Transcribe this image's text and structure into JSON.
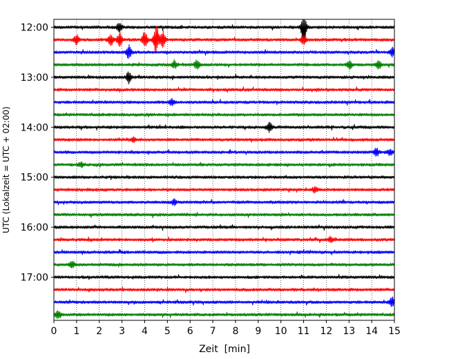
{
  "chart_data": {
    "type": "line",
    "xlabel": "Zeit  [min]",
    "ylabel": "UTC (Lokalzeit = UTC + 02:00)",
    "xlim": [
      0,
      15
    ],
    "x_ticks": [
      "0",
      "1",
      "2",
      "3",
      "4",
      "5",
      "6",
      "7",
      "8",
      "9",
      "10",
      "11",
      "12",
      "13",
      "14",
      "15"
    ],
    "y_tick_labels": [
      "12:00",
      "13:00",
      "14:00",
      "15:00",
      "16:00",
      "17:00"
    ],
    "grid": "vertical dotted lines at each minute",
    "trace_interval_minutes": 15,
    "colors": [
      "#000000",
      "#ff0000",
      "#0000ff",
      "#008000"
    ],
    "traces": [
      {
        "start": "12:00",
        "color": "#000000",
        "events": [
          {
            "x": 11.0,
            "amp": 3.0
          },
          {
            "x": 2.9,
            "amp": 1.0
          }
        ]
      },
      {
        "start": "12:15",
        "color": "#ff0000",
        "events": [
          {
            "x": 4.0,
            "amp": 1.6
          },
          {
            "x": 4.5,
            "amp": 2.6
          },
          {
            "x": 4.8,
            "amp": 1.8
          },
          {
            "x": 2.9,
            "amp": 1.4
          },
          {
            "x": 1.0,
            "amp": 1.0
          },
          {
            "x": 2.5,
            "amp": 1.0
          },
          {
            "x": 11.0,
            "amp": 0.9
          }
        ]
      },
      {
        "start": "12:30",
        "color": "#0000ff",
        "events": [
          {
            "x": 3.3,
            "amp": 1.3
          },
          {
            "x": 14.9,
            "amp": 1.0
          }
        ]
      },
      {
        "start": "12:45",
        "color": "#008000",
        "events": [
          {
            "x": 5.3,
            "amp": 0.8
          },
          {
            "x": 6.3,
            "amp": 0.9
          },
          {
            "x": 13.0,
            "amp": 0.8
          },
          {
            "x": 14.3,
            "amp": 0.8
          }
        ]
      },
      {
        "start": "13:00",
        "color": "#000000",
        "events": [
          {
            "x": 3.3,
            "amp": 1.1
          }
        ]
      },
      {
        "start": "13:15",
        "color": "#ff0000",
        "events": []
      },
      {
        "start": "13:30",
        "color": "#0000ff",
        "events": [
          {
            "x": 5.2,
            "amp": 0.6
          }
        ]
      },
      {
        "start": "13:45",
        "color": "#008000",
        "events": []
      },
      {
        "start": "14:00",
        "color": "#000000",
        "events": [
          {
            "x": 9.5,
            "amp": 0.9
          }
        ]
      },
      {
        "start": "14:15",
        "color": "#ff0000",
        "events": [
          {
            "x": 3.5,
            "amp": 0.5
          }
        ]
      },
      {
        "start": "14:30",
        "color": "#0000ff",
        "events": [
          {
            "x": 14.2,
            "amp": 0.8
          },
          {
            "x": 14.8,
            "amp": 0.6
          }
        ]
      },
      {
        "start": "14:45",
        "color": "#008000",
        "events": [
          {
            "x": 1.2,
            "amp": 0.5
          }
        ]
      },
      {
        "start": "15:00",
        "color": "#000000",
        "events": []
      },
      {
        "start": "15:15",
        "color": "#ff0000",
        "events": [
          {
            "x": 11.5,
            "amp": 0.5
          }
        ]
      },
      {
        "start": "15:30",
        "color": "#0000ff",
        "events": [
          {
            "x": 5.3,
            "amp": 0.6
          }
        ]
      },
      {
        "start": "15:45",
        "color": "#008000",
        "events": []
      },
      {
        "start": "16:00",
        "color": "#000000",
        "events": []
      },
      {
        "start": "16:15",
        "color": "#ff0000",
        "events": [
          {
            "x": 12.2,
            "amp": 0.5
          }
        ]
      },
      {
        "start": "16:30",
        "color": "#0000ff",
        "events": []
      },
      {
        "start": "16:45",
        "color": "#008000",
        "events": [
          {
            "x": 0.8,
            "amp": 0.7
          }
        ]
      },
      {
        "start": "17:00",
        "color": "#000000",
        "events": []
      },
      {
        "start": "17:15",
        "color": "#ff0000",
        "events": []
      },
      {
        "start": "17:30",
        "color": "#0000ff",
        "events": [
          {
            "x": 14.9,
            "amp": 0.9
          }
        ]
      },
      {
        "start": "17:45",
        "color": "#008000",
        "events": [
          {
            "x": 0.2,
            "amp": 0.8
          }
        ]
      }
    ]
  }
}
